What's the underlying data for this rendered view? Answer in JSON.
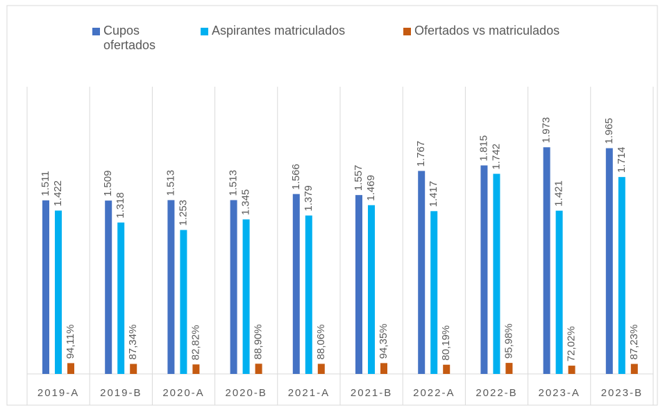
{
  "chart_data": {
    "type": "bar",
    "categories": [
      "2019-A",
      "2019-B",
      "2020-A",
      "2020-B",
      "2021-A",
      "2021-B",
      "2022-A",
      "2022-B",
      "2023-A",
      "2023-B"
    ],
    "ylim": [
      0,
      2500
    ],
    "legend": "top",
    "series": [
      {
        "name": "Cupos ofertados",
        "color": "#4472c4",
        "values": [
          1511,
          1509,
          1513,
          1513,
          1566,
          1557,
          1767,
          1815,
          1973,
          1965
        ],
        "value_labels": [
          "1.511",
          "1.509",
          "1.513",
          "1.513",
          "1.566",
          "1.557",
          "1.767",
          "1.815",
          "1.973",
          "1.965"
        ]
      },
      {
        "name": "Aspirantes matriculados",
        "color": "#00b0f0",
        "values": [
          1422,
          1318,
          1253,
          1345,
          1379,
          1469,
          1417,
          1742,
          1421,
          1714
        ],
        "value_labels": [
          "1.422",
          "1.318",
          "1.253",
          "1.345",
          "1.379",
          "1.469",
          "1.417",
          "1.742",
          "1.421",
          "1.714"
        ]
      },
      {
        "name": "Ofertados vs matriculados",
        "color": "#c55a11",
        "values": [
          94.11,
          87.34,
          82.82,
          88.9,
          88.06,
          94.35,
          80.19,
          95.98,
          72.02,
          87.23
        ],
        "value_labels": [
          "94,11%",
          "87,34%",
          "82,82%",
          "88,90%",
          "88,06%",
          "94,35%",
          "80,19%",
          "95,98%",
          "72,02%",
          "87,23%"
        ]
      }
    ]
  }
}
